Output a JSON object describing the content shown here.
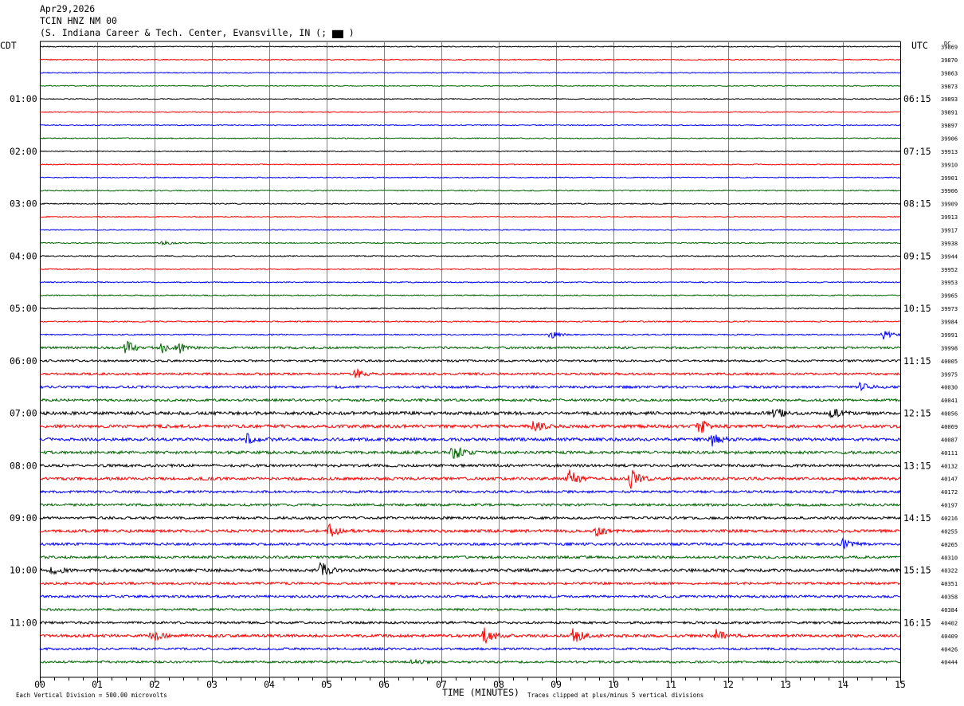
{
  "header": {
    "date": "Apr29,2026",
    "station": "TCIN HNZ NM 00",
    "location": "(S. Indiana Career & Tech. Center, Evansville, IN (;  ▆▆   )"
  },
  "left_zone_label": "CDT",
  "right_zone_label": "UTC",
  "dc_label": "DC",
  "footer": {
    "xlabel": "TIME (MINUTES)",
    "scale_note": "Each Vertical Division =  500.00 microvolts",
    "clip_note": "Traces clipped at plus/minus 5 vertical divisions"
  },
  "colors": {
    "cycle": [
      "#000000",
      "#ff0000",
      "#0000ff",
      "#006400"
    ],
    "grid": "#808080"
  },
  "chart_data": {
    "type": "line",
    "title": "TCIN HNZ NM 00",
    "xlabel": "TIME (MINUTES)",
    "xlim": [
      0,
      15
    ],
    "x_ticks": [
      "00",
      "01",
      "02",
      "03",
      "04",
      "05",
      "06",
      "07",
      "08",
      "09",
      "10",
      "11",
      "12",
      "13",
      "14",
      "15"
    ],
    "grid": true,
    "left_hour_labels": [
      {
        "row": 4,
        "label": "01:00"
      },
      {
        "row": 8,
        "label": "02:00"
      },
      {
        "row": 12,
        "label": "03:00"
      },
      {
        "row": 16,
        "label": "04:00"
      },
      {
        "row": 20,
        "label": "05:00"
      },
      {
        "row": 24,
        "label": "06:00"
      },
      {
        "row": 28,
        "label": "07:00"
      },
      {
        "row": 32,
        "label": "08:00"
      },
      {
        "row": 36,
        "label": "09:00"
      },
      {
        "row": 40,
        "label": "10:00"
      },
      {
        "row": 44,
        "label": "11:00"
      }
    ],
    "right_hour_labels": [
      {
        "row": 4,
        "label": "06:15"
      },
      {
        "row": 8,
        "label": "07:15"
      },
      {
        "row": 12,
        "label": "08:15"
      },
      {
        "row": 16,
        "label": "09:15"
      },
      {
        "row": 20,
        "label": "10:15"
      },
      {
        "row": 24,
        "label": "11:15"
      },
      {
        "row": 28,
        "label": "12:15"
      },
      {
        "row": 32,
        "label": "13:15"
      },
      {
        "row": 36,
        "label": "14:15"
      },
      {
        "row": 40,
        "label": "15:15"
      },
      {
        "row": 44,
        "label": "16:15"
      }
    ],
    "dc_values": [
      "39869",
      "39870",
      "39863",
      "39873",
      "39893",
      "39891",
      "39897",
      "39906",
      "39913",
      "39910",
      "39901",
      "39906",
      "39909",
      "39913",
      "39917",
      "39938",
      "39944",
      "39952",
      "39953",
      "39965",
      "39973",
      "39984",
      "39991",
      "39998",
      "40005",
      "39975",
      "40030",
      "40041",
      "40056",
      "40069",
      "40087",
      "40111",
      "40132",
      "40147",
      "40172",
      "40197",
      "40216",
      "40255",
      "40265",
      "40310",
      "40322",
      "40351",
      "40358",
      "40384",
      "40402",
      "40409",
      "40426",
      "40444"
    ],
    "noise_levels": [
      0.6,
      0.6,
      0.6,
      0.6,
      0.6,
      0.6,
      0.6,
      0.6,
      0.6,
      0.6,
      0.6,
      0.7,
      0.7,
      0.6,
      0.6,
      0.7,
      0.7,
      0.7,
      0.7,
      0.7,
      0.7,
      0.8,
      0.8,
      1.4,
      1.3,
      1.4,
      1.5,
      1.6,
      2.0,
      2.0,
      1.9,
      1.8,
      1.7,
      1.8,
      1.5,
      1.5,
      1.6,
      1.8,
      1.6,
      1.6,
      1.9,
      1.5,
      1.5,
      1.4,
      1.5,
      1.8,
      1.4,
      1.4
    ],
    "events": [
      {
        "row": 15,
        "minute": 2.1,
        "amp": 3
      },
      {
        "row": 22,
        "minute": 8.9,
        "amp": 5
      },
      {
        "row": 22,
        "minute": 14.7,
        "amp": 6
      },
      {
        "row": 23,
        "minute": 1.5,
        "amp": 10
      },
      {
        "row": 23,
        "minute": 2.1,
        "amp": 8
      },
      {
        "row": 23,
        "minute": 2.4,
        "amp": 9
      },
      {
        "row": 25,
        "minute": 5.5,
        "amp": 6
      },
      {
        "row": 26,
        "minute": 14.3,
        "amp": 5
      },
      {
        "row": 28,
        "minute": 12.8,
        "amp": 8
      },
      {
        "row": 28,
        "minute": 13.8,
        "amp": 7
      },
      {
        "row": 29,
        "minute": 8.6,
        "amp": 8
      },
      {
        "row": 29,
        "minute": 11.5,
        "amp": 10
      },
      {
        "row": 30,
        "minute": 3.6,
        "amp": 9
      },
      {
        "row": 30,
        "minute": 11.7,
        "amp": 9
      },
      {
        "row": 31,
        "minute": 7.2,
        "amp": 11
      },
      {
        "row": 33,
        "minute": 9.2,
        "amp": 14
      },
      {
        "row": 33,
        "minute": 10.3,
        "amp": 12
      },
      {
        "row": 37,
        "minute": 5.05,
        "amp": 8
      },
      {
        "row": 37,
        "minute": 9.7,
        "amp": 6
      },
      {
        "row": 38,
        "minute": 14.0,
        "amp": 6
      },
      {
        "row": 40,
        "minute": 0.2,
        "amp": 6
      },
      {
        "row": 40,
        "minute": 4.9,
        "amp": 10
      },
      {
        "row": 45,
        "minute": 1.95,
        "amp": 8
      },
      {
        "row": 45,
        "minute": 7.75,
        "amp": 11
      },
      {
        "row": 45,
        "minute": 9.3,
        "amp": 10
      },
      {
        "row": 45,
        "minute": 11.8,
        "amp": 8
      },
      {
        "row": 47,
        "minute": 6.5,
        "amp": 4
      }
    ]
  }
}
